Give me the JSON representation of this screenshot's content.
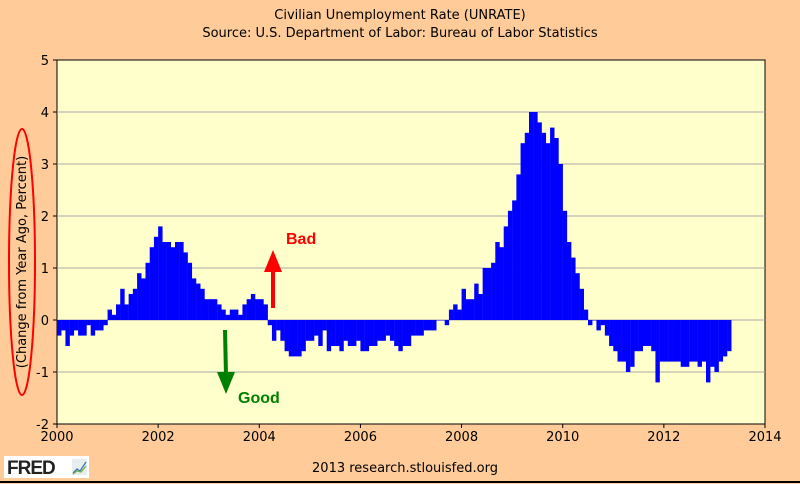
{
  "chart_data": {
    "type": "bar",
    "title": "Civilian Unemployment Rate (UNRATE)",
    "subtitle": "Source: U.S. Department of Labor: Bureau of Labor Statistics",
    "xlabel": "",
    "ylabel": "(Change from Year Ago, Percent)",
    "x_start": "2000-01",
    "frequency": "monthly",
    "xlim": [
      2000,
      2014
    ],
    "ylim": [
      -2,
      5
    ],
    "xticks": [
      "2000",
      "2002",
      "2004",
      "2006",
      "2008",
      "2010",
      "2012",
      "2014"
    ],
    "yticks": [
      "-2",
      "-1",
      "0",
      "1",
      "2",
      "3",
      "4",
      "5"
    ],
    "grid": true,
    "values": [
      -0.3,
      -0.2,
      -0.5,
      -0.3,
      -0.2,
      -0.3,
      -0.3,
      -0.1,
      -0.3,
      -0.2,
      -0.2,
      -0.1,
      0.2,
      0.1,
      0.3,
      0.6,
      0.3,
      0.5,
      0.6,
      0.9,
      0.8,
      1.1,
      1.4,
      1.6,
      1.8,
      1.5,
      1.5,
      1.4,
      1.5,
      1.5,
      1.3,
      1.1,
      0.8,
      0.7,
      0.6,
      0.4,
      0.4,
      0.4,
      0.3,
      0.2,
      0.1,
      0.2,
      0.2,
      0.1,
      0.3,
      0.4,
      0.5,
      0.4,
      0.4,
      0.3,
      -0.1,
      -0.4,
      -0.2,
      -0.4,
      -0.6,
      -0.7,
      -0.7,
      -0.7,
      -0.6,
      -0.4,
      -0.4,
      -0.3,
      -0.5,
      -0.2,
      -0.6,
      -0.5,
      -0.5,
      -0.6,
      -0.4,
      -0.5,
      -0.5,
      -0.4,
      -0.6,
      -0.6,
      -0.5,
      -0.5,
      -0.4,
      -0.4,
      -0.3,
      -0.4,
      -0.5,
      -0.6,
      -0.5,
      -0.5,
      -0.3,
      -0.3,
      -0.3,
      -0.2,
      -0.2,
      -0.2,
      0.0,
      0.0,
      -0.1,
      0.2,
      0.3,
      0.2,
      0.6,
      0.4,
      0.4,
      0.7,
      0.5,
      1.0,
      1.0,
      1.1,
      1.5,
      1.4,
      1.8,
      2.1,
      2.3,
      2.8,
      3.4,
      3.6,
      4.0,
      4.0,
      3.8,
      3.6,
      3.4,
      3.7,
      3.5,
      3.0,
      2.1,
      1.5,
      1.2,
      0.9,
      0.6,
      0.2,
      -0.1,
      0.0,
      -0.2,
      -0.1,
      -0.3,
      -0.5,
      -0.6,
      -0.8,
      -0.8,
      -1.0,
      -0.9,
      -0.6,
      -0.6,
      -0.5,
      -0.5,
      -0.6,
      -1.2,
      -0.8,
      -0.8,
      -0.8,
      -0.8,
      -0.8,
      -0.9,
      -0.9,
      -0.8,
      -0.8,
      -0.9,
      -0.8,
      -1.2,
      -0.9,
      -1.0,
      -0.8,
      -0.7,
      -0.6
    ],
    "annotations": [
      {
        "text": "Bad",
        "color": "#ff0000",
        "direction": "up"
      },
      {
        "text": "Good",
        "color": "#008000",
        "direction": "down"
      }
    ],
    "bar_color": "#0000ff",
    "plot_background": "#ffffcc",
    "page_background": "#ffcc99"
  },
  "footer": "2013 research.stlouisfed.org",
  "logo": "FRED"
}
